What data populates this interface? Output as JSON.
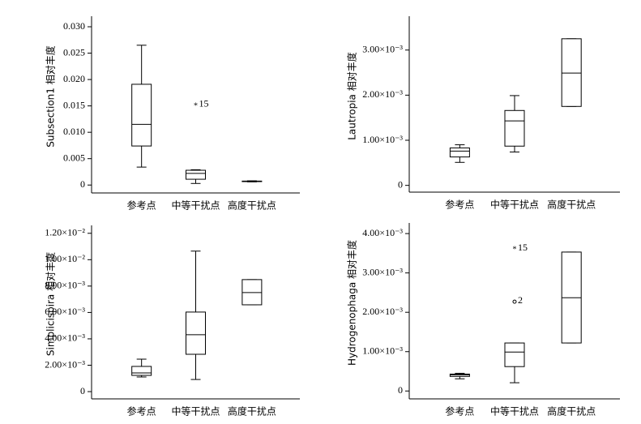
{
  "chart_data": [
    {
      "type": "box",
      "y_label": "Subsection1 相对丰度",
      "categories": [
        "参考点",
        "中等干扰点",
        "高度干扰点"
      ],
      "boxes": [
        {
          "whisker_low": 0.0034,
          "q1": 0.0074,
          "median": 0.0115,
          "q3": 0.0191,
          "whisker_high": 0.0265
        },
        {
          "whisker_low": 0.0003,
          "q1": 0.0011,
          "median": 0.0022,
          "q3": 0.0028,
          "whisker_high": 0.0029,
          "outliers": [
            {
              "value": 0.0151,
              "label": "15",
              "marker": "star"
            }
          ]
        },
        {
          "whisker_low": 0.0006,
          "q1": 0.00065,
          "median": 0.0007,
          "q3": 0.00075,
          "whisker_high": 0.0008
        }
      ],
      "ylim": [
        -0.0015,
        0.032
      ],
      "yticks": [
        0,
        0.005,
        {
          "value": 0.01,
          "label": "0.010"
        },
        0.015,
        {
          "value": 0.02,
          "label": "0.020"
        },
        0.025,
        {
          "value": 0.03,
          "label": "0.030"
        }
      ]
    },
    {
      "type": "box",
      "y_label": "Lautropia 相对丰度",
      "categories": [
        "参考点",
        "中等干扰点",
        "高度干扰点"
      ],
      "boxes": [
        {
          "whisker_low": 0.00051,
          "q1": 0.00063,
          "median": 0.00076,
          "q3": 0.00083,
          "whisker_high": 0.0009
        },
        {
          "whisker_low": 0.00074,
          "q1": 0.00087,
          "median": 0.00143,
          "q3": 0.00166,
          "whisker_high": 0.00199
        },
        {
          "whisker_low": 0.00175,
          "q1": 0.00175,
          "median": 0.00249,
          "q3": 0.00325,
          "whisker_high": 0.00325
        }
      ],
      "ylim": [
        -0.00015,
        0.00375
      ],
      "yticks": [
        0,
        {
          "value": 0.001,
          "label": "1.00×10⁻³"
        },
        {
          "value": 0.002,
          "label": "2.00×10⁻³"
        },
        {
          "value": 0.003,
          "label": "3.00×10⁻³"
        }
      ]
    },
    {
      "type": "box",
      "y_label": "Simplicispira 相对丰度",
      "categories": [
        "参考点",
        "中等干扰点",
        "高度干扰点"
      ],
      "boxes": [
        {
          "whisker_low": 0.00111,
          "q1": 0.00123,
          "median": 0.00142,
          "q3": 0.00191,
          "whisker_high": 0.00246
        },
        {
          "whisker_low": 0.00092,
          "q1": 0.00283,
          "median": 0.00431,
          "q3": 0.00603,
          "whisker_high": 0.01065
        },
        {
          "whisker_low": 0.00658,
          "q1": 0.00658,
          "median": 0.00751,
          "q3": 0.00849,
          "whisker_high": 0.00849
        }
      ],
      "ylim": [
        -0.00055,
        0.0126
      ],
      "yticks": [
        0,
        {
          "value": 0.002,
          "label": "2.00×10⁻³"
        },
        {
          "value": 0.004,
          "label": "4.00×10⁻³"
        },
        {
          "value": 0.006,
          "label": "6.00×10⁻³"
        },
        {
          "value": 0.008,
          "label": "8.00×10⁻³"
        },
        {
          "value": 0.01,
          "label": "1.00×10⁻²"
        },
        {
          "value": 0.012,
          "label": "1.20×10⁻²"
        }
      ]
    },
    {
      "type": "box",
      "y_label": "Hydrogenophaga 相对丰度",
      "categories": [
        "参考点",
        "中等干扰点",
        "高度干扰点"
      ],
      "boxes": [
        {
          "whisker_low": 0.00031,
          "q1": 0.00037,
          "median": 0.00041,
          "q3": 0.00043,
          "whisker_high": 0.00045
        },
        {
          "whisker_low": 0.00021,
          "q1": 0.00062,
          "median": 0.00099,
          "q3": 0.00122,
          "whisker_high": 0.00122,
          "outliers": [
            {
              "value": 0.00361,
              "label": "15",
              "marker": "star"
            },
            {
              "value": 0.00227,
              "label": "2",
              "marker": "circle"
            }
          ]
        },
        {
          "whisker_low": 0.00122,
          "q1": 0.00122,
          "median": 0.00237,
          "q3": 0.00353,
          "whisker_high": 0.00353
        }
      ],
      "ylim": [
        -0.0002,
        0.00427
      ],
      "yticks": [
        0,
        {
          "value": 0.001,
          "label": "1.00×10⁻³"
        },
        {
          "value": 0.002,
          "label": "2.00×10⁻³"
        },
        {
          "value": 0.003,
          "label": "3.00×10⁻³"
        },
        {
          "value": 0.004,
          "label": "4.00×10⁻³"
        }
      ]
    }
  ]
}
